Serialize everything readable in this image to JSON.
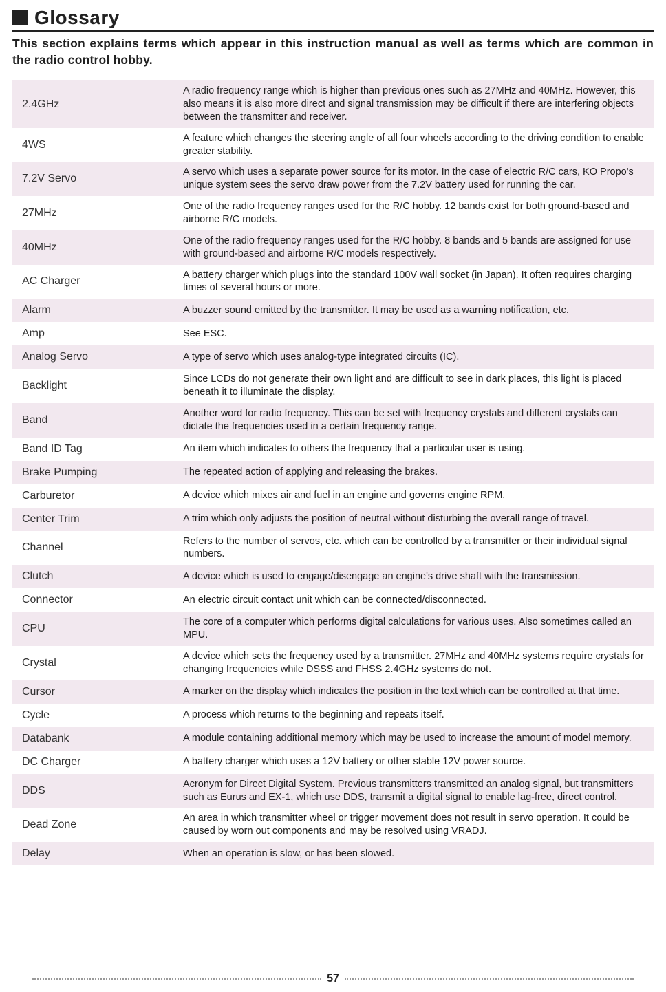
{
  "heading": {
    "title": "Glossary"
  },
  "intro": "This section explains terms which appear in this instruction manual as well as terms which are common in the radio control hobby.",
  "colors": {
    "odd_row_bg": "#f2e8ef",
    "even_row_bg": "#ffffff",
    "text": "#222222",
    "border": "#222222"
  },
  "page_number": "57",
  "glossary": [
    {
      "term": "2.4GHz",
      "definition": "A radio frequency range which is higher than previous ones such as 27MHz and 40MHz. However, this also means it is also more direct and signal transmission may be difficult if there are interfering objects between the transmitter and receiver."
    },
    {
      "term": "4WS",
      "definition": "A feature which changes the steering angle of all four wheels according to the driving condition to enable greater stability."
    },
    {
      "term": "7.2V Servo",
      "definition": "A servo which uses a separate power source for its motor. In the case of electric R/C cars, KO Propo's unique system sees the servo draw power from the 7.2V battery used for running the car."
    },
    {
      "term": "27MHz",
      "definition": "One of the radio frequency ranges used for the R/C hobby. 12 bands exist for both ground-based and airborne R/C models."
    },
    {
      "term": "40MHz",
      "definition": "One of the radio frequency ranges used for the R/C hobby. 8 bands and 5 bands are assigned for use with ground-based and airborne R/C models respectively."
    },
    {
      "term": "AC Charger",
      "definition": "A battery charger which plugs into the standard 100V wall socket (in Japan). It often requires charging times of several hours or more."
    },
    {
      "term": "Alarm",
      "definition": "A buzzer sound emitted by the transmitter. It may be used as a warning notification, etc."
    },
    {
      "term": "Amp",
      "definition": "See ESC."
    },
    {
      "term": "Analog Servo",
      "definition": "A type of servo which uses analog-type integrated circuits (IC)."
    },
    {
      "term": "Backlight",
      "definition": "Since LCDs do not generate their own light and are difficult to see in dark places, this light is placed beneath it to illuminate the display."
    },
    {
      "term": "Band",
      "definition": "Another word for radio frequency. This can be set with frequency crystals and different crystals can dictate the frequencies used in a certain frequency range."
    },
    {
      "term": "Band ID Tag",
      "definition": "An item which indicates to others the frequency that a particular user is using."
    },
    {
      "term": "Brake Pumping",
      "definition": "The repeated action of applying and releasing the brakes."
    },
    {
      "term": "Carburetor",
      "definition": "A device which mixes air and fuel in an engine and governs engine RPM."
    },
    {
      "term": "Center Trim",
      "definition": "A trim which only adjusts the position of neutral without disturbing the overall range of travel."
    },
    {
      "term": "Channel",
      "definition": "Refers to the number of servos, etc. which can be controlled by a transmitter or their individual signal numbers."
    },
    {
      "term": "Clutch",
      "definition": "A device which is used to engage/disengage an engine's drive shaft with the transmission."
    },
    {
      "term": "Connector",
      "definition": "An electric circuit contact unit which can be connected/disconnected."
    },
    {
      "term": "CPU",
      "definition": "The core of a computer which performs digital calculations for various uses. Also sometimes called an MPU."
    },
    {
      "term": "Crystal",
      "definition": "A device which sets the frequency used by a transmitter. 27MHz and 40MHz systems require crystals for changing frequencies while DSSS and FHSS 2.4GHz systems do not."
    },
    {
      "term": "Cursor",
      "definition": "A marker on the display which indicates the position in the text which can be controlled at that time."
    },
    {
      "term": "Cycle",
      "definition": "A process which returns to the beginning and repeats itself."
    },
    {
      "term": "Databank",
      "definition": "A module containing additional memory which may be used to increase the amount of model memory."
    },
    {
      "term": "DC Charger",
      "definition": "A battery charger which uses a 12V battery or other stable 12V power source."
    },
    {
      "term": "DDS",
      "definition": "Acronym for Direct Digital System. Previous transmitters transmitted an analog signal, but transmitters such as Eurus and EX-1, which use DDS, transmit a digital signal to enable lag-free, direct control."
    },
    {
      "term": "Dead Zone",
      "definition": "An area in which transmitter wheel or trigger movement does not result in servo operation. It could be caused by worn out components and may be resolved using VRADJ."
    },
    {
      "term": "Delay",
      "definition": "When an operation is slow, or has been slowed."
    }
  ]
}
